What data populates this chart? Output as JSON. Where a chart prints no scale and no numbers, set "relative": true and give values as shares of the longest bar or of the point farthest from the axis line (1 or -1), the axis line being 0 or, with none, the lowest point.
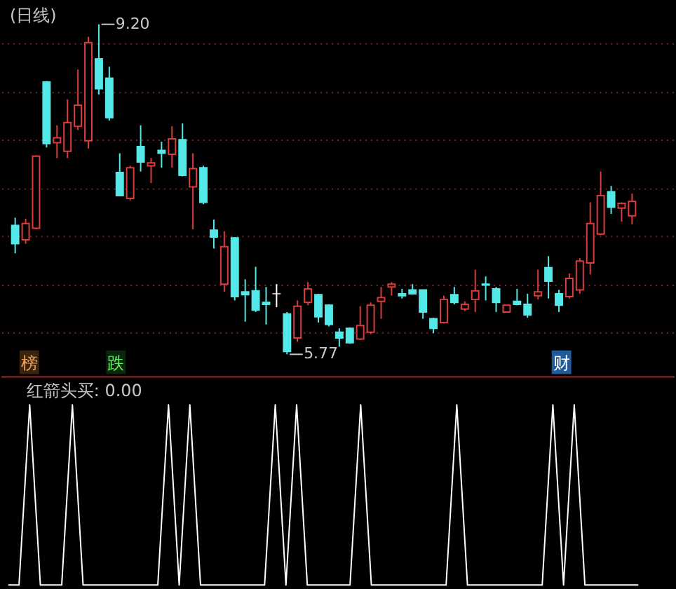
{
  "chart_data": [
    {
      "type": "candlestick",
      "title": "(日线)",
      "categories": [
        null,
        null,
        null,
        null,
        null,
        null,
        null,
        null,
        null,
        null,
        null,
        null,
        null,
        null,
        null,
        null,
        null,
        null,
        null,
        null,
        null,
        null,
        null,
        null,
        null,
        null,
        null,
        null,
        null,
        null,
        null,
        null,
        null,
        null,
        null,
        null,
        null,
        null,
        null,
        null,
        null,
        null,
        null,
        null,
        null,
        null,
        null,
        null,
        null,
        null,
        null,
        null,
        null,
        null,
        null,
        null,
        null,
        null,
        null,
        null
      ],
      "ohlc": [
        [
          7.11,
          7.19,
          6.82,
          6.92
        ],
        [
          6.96,
          7.18,
          6.92,
          7.13
        ],
        [
          7.08,
          7.84,
          7.07,
          7.83
        ],
        [
          8.6,
          8.61,
          7.92,
          7.96
        ],
        [
          7.97,
          8.15,
          7.81,
          8.02
        ],
        [
          7.88,
          8.42,
          7.81,
          8.18
        ],
        [
          8.14,
          8.73,
          8.1,
          8.36
        ],
        [
          7.99,
          9.07,
          7.91,
          9.01
        ],
        [
          8.84,
          9.2,
          8.47,
          8.53
        ],
        [
          8.64,
          8.76,
          8.2,
          8.23
        ],
        [
          7.66,
          7.86,
          7.42,
          7.42
        ],
        [
          7.39,
          7.73,
          7.37,
          7.71
        ],
        [
          7.93,
          8.15,
          7.67,
          7.77
        ],
        [
          7.73,
          7.81,
          7.55,
          7.76
        ],
        [
          7.89,
          7.98,
          7.71,
          7.86
        ],
        [
          7.85,
          8.14,
          7.71,
          8.01
        ],
        [
          8.0,
          8.17,
          7.62,
          7.63
        ],
        [
          7.51,
          7.86,
          7.07,
          7.7
        ],
        [
          7.71,
          7.73,
          7.33,
          7.35
        ],
        [
          7.06,
          7.17,
          6.87,
          6.99
        ],
        [
          6.5,
          7.05,
          6.42,
          6.89
        ],
        [
          6.98,
          6.99,
          6.33,
          6.37
        ],
        [
          6.42,
          6.55,
          6.11,
          6.39
        ],
        [
          6.43,
          6.68,
          6.21,
          6.23
        ],
        [
          6.31,
          6.47,
          6.08,
          6.29
        ],
        [
          6.4,
          6.5,
          6.26,
          6.4
        ],
        [
          6.19,
          6.21,
          5.77,
          5.8
        ],
        [
          5.94,
          6.33,
          5.9,
          6.27
        ],
        [
          6.31,
          6.52,
          6.28,
          6.45
        ],
        [
          6.39,
          6.4,
          6.1,
          6.16
        ],
        [
          6.28,
          6.29,
          6.06,
          6.08
        ],
        [
          6.0,
          6.04,
          5.85,
          5.94
        ],
        [
          6.04,
          6.05,
          5.88,
          5.89
        ],
        [
          5.93,
          6.27,
          5.92,
          6.07
        ],
        [
          6.0,
          6.31,
          5.98,
          6.28
        ],
        [
          6.32,
          6.47,
          6.14,
          6.36
        ],
        [
          6.47,
          6.52,
          6.38,
          6.5
        ],
        [
          6.4,
          6.45,
          6.35,
          6.38
        ],
        [
          6.44,
          6.5,
          6.39,
          6.4
        ],
        [
          6.44,
          6.44,
          6.14,
          6.21
        ],
        [
          6.14,
          6.15,
          5.99,
          6.04
        ],
        [
          6.1,
          6.38,
          6.09,
          6.34
        ],
        [
          6.39,
          6.47,
          6.29,
          6.31
        ],
        [
          6.24,
          6.32,
          6.22,
          6.29
        ],
        [
          6.34,
          6.65,
          6.21,
          6.43
        ],
        [
          6.5,
          6.58,
          6.33,
          6.49
        ],
        [
          6.45,
          6.47,
          6.21,
          6.31
        ],
        [
          6.21,
          6.28,
          6.21,
          6.28
        ],
        [
          6.32,
          6.45,
          6.28,
          6.29
        ],
        [
          6.29,
          6.4,
          6.15,
          6.18
        ],
        [
          6.38,
          6.65,
          6.34,
          6.42
        ],
        [
          6.67,
          6.79,
          6.35,
          6.53
        ],
        [
          6.4,
          6.44,
          6.21,
          6.28
        ],
        [
          6.37,
          6.61,
          6.35,
          6.56
        ],
        [
          6.44,
          6.77,
          6.4,
          6.74
        ],
        [
          6.72,
          7.35,
          6.6,
          7.13
        ],
        [
          7.02,
          7.67,
          7.01,
          7.42
        ],
        [
          7.46,
          7.52,
          7.23,
          7.3
        ],
        [
          7.29,
          7.35,
          7.15,
          7.34
        ],
        [
          7.21,
          7.44,
          7.12,
          7.36
        ]
      ],
      "colors": [
        "#54e8e8",
        "#dc3c3c",
        "#dc3c3c",
        "#54e8e8",
        "#dc3c3c",
        "#dc3c3c",
        "#dc3c3c",
        "#dc3c3c",
        "#54e8e8",
        "#54e8e8",
        "#54e8e8",
        "#dc3c3c",
        "#54e8e8",
        "#dc3c3c",
        "#54e8e8",
        "#dc3c3c",
        "#54e8e8",
        "#dc3c3c",
        "#54e8e8",
        "#54e8e8",
        "#dc3c3c",
        "#54e8e8",
        "#54e8e8",
        "#54e8e8",
        "#54e8e8",
        "#ffffff",
        "#54e8e8",
        "#dc3c3c",
        "#dc3c3c",
        "#54e8e8",
        "#54e8e8",
        "#54e8e8",
        "#54e8e8",
        "#dc3c3c",
        "#dc3c3c",
        "#dc3c3c",
        "#dc3c3c",
        "#54e8e8",
        "#54e8e8",
        "#54e8e8",
        "#54e8e8",
        "#dc3c3c",
        "#54e8e8",
        "#dc3c3c",
        "#dc3c3c",
        "#54e8e8",
        "#54e8e8",
        "#dc3c3c",
        "#54e8e8",
        "#54e8e8",
        "#dc3c3c",
        "#54e8e8",
        "#54e8e8",
        "#dc3c3c",
        "#dc3c3c",
        "#dc3c3c",
        "#dc3c3c",
        "#54e8e8",
        "#dc3c3c",
        "#dc3c3c"
      ],
      "ylim": [
        5.55,
        9.44
      ],
      "yticks": [
        {
          "value": 6.0,
          "label": null
        },
        {
          "value": 6.5,
          "label": null
        },
        {
          "value": 7.0,
          "label": null
        },
        {
          "value": 7.5,
          "label": null
        },
        {
          "value": 8.0,
          "label": null
        },
        {
          "value": 8.5,
          "label": null
        },
        {
          "value": 9.0,
          "label": null
        }
      ],
      "grid": "y",
      "tick_labels": false,
      "annotations": [
        "9.20",
        "5.77",
        "榜",
        "跌",
        "财"
      ]
    },
    {
      "type": "line",
      "title": "红箭头买: 0.00",
      "relative": true,
      "tick_labels": false,
      "categories": [
        null,
        null,
        null,
        null,
        null,
        null,
        null,
        null,
        null,
        null,
        null,
        null,
        null,
        null,
        null,
        null,
        null,
        null,
        null,
        null,
        null,
        null,
        null,
        null,
        null,
        null,
        null,
        null,
        null,
        null,
        null,
        null,
        null,
        null,
        null,
        null,
        null,
        null,
        null,
        null,
        null,
        null,
        null,
        null,
        null,
        null,
        null,
        null,
        null,
        null,
        null,
        null,
        null,
        null,
        null,
        null,
        null,
        null,
        null,
        null
      ],
      "series": [
        {
          "color": "#ffffff",
          "values": [
            0,
            0,
            1,
            0,
            0,
            0,
            1,
            0,
            0,
            0,
            0,
            0,
            0,
            0,
            0,
            1,
            0,
            1,
            0,
            0,
            0,
            0,
            0,
            0,
            0,
            1,
            0,
            1,
            0,
            0,
            0,
            0,
            0,
            1,
            0,
            0,
            0,
            0,
            0,
            0,
            0,
            0,
            1,
            0,
            0,
            0,
            0,
            0,
            0,
            0,
            0,
            1,
            0,
            1,
            0,
            0,
            0,
            0,
            0,
            0
          ]
        }
      ]
    }
  ]
}
